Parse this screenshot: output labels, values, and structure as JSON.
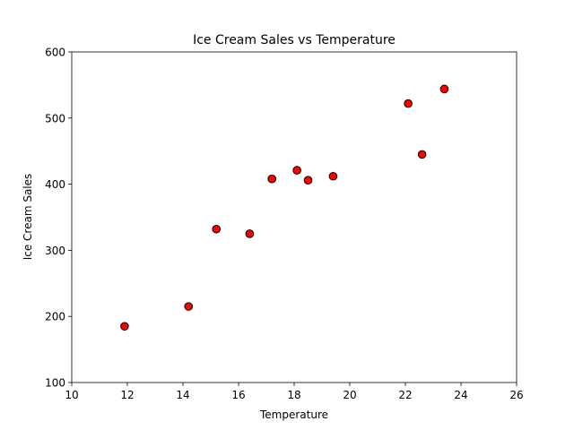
{
  "chart_data": {
    "type": "scatter",
    "title": "Ice Cream Sales vs Temperature",
    "xlabel": "Temperature",
    "ylabel": "Ice Cream Sales",
    "xlim": [
      10,
      26
    ],
    "ylim": [
      100,
      600
    ],
    "xticks": [
      10,
      12,
      14,
      16,
      18,
      20,
      22,
      24,
      26
    ],
    "yticks": [
      100,
      200,
      300,
      400,
      500,
      600
    ],
    "grid": false,
    "marker_color": "#ff0000",
    "marker_edge": "#000000",
    "points": [
      {
        "x": 11.9,
        "y": 185
      },
      {
        "x": 14.2,
        "y": 215
      },
      {
        "x": 15.2,
        "y": 332
      },
      {
        "x": 16.4,
        "y": 325
      },
      {
        "x": 17.2,
        "y": 408
      },
      {
        "x": 18.1,
        "y": 421
      },
      {
        "x": 18.5,
        "y": 406
      },
      {
        "x": 19.4,
        "y": 412
      },
      {
        "x": 22.1,
        "y": 522
      },
      {
        "x": 22.6,
        "y": 445
      },
      {
        "x": 23.4,
        "y": 544
      }
    ]
  }
}
